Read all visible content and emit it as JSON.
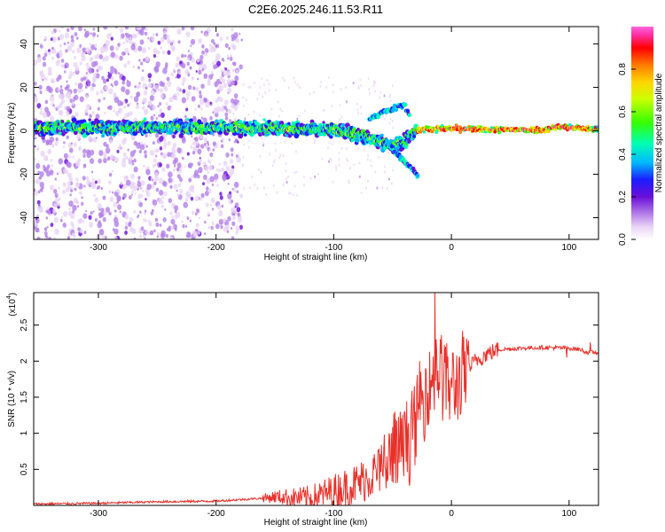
{
  "title": "C2E6.2025.246.11.53.R11",
  "colors": {
    "snr_line": "#e8302a",
    "spectrum_colormap": [
      "#ffffff",
      "#e9d4f5",
      "#b37fe8",
      "#6a0fd8",
      "#1c1cff",
      "#00b7ff",
      "#00ffb4",
      "#35ff00",
      "#ccff00",
      "#ffd400",
      "#ff7a00",
      "#ff0000",
      "#ff2ea0",
      "#ff66dd"
    ]
  },
  "chart_data": [
    {
      "type": "heatmap",
      "title": "C2E6.2025.246.11.53.R11",
      "xlabel": "Height of straight line (km)",
      "ylabel": "Frequency (Hz)",
      "colorbar_label": "Normalized spectral amplitude",
      "xlim": [
        -355,
        125
      ],
      "ylim": [
        -50,
        48
      ],
      "x_ticks": [
        -300,
        -200,
        -100,
        0,
        100
      ],
      "x_tick_labels": [
        "-300",
        "-200",
        "-100",
        "0",
        "100"
      ],
      "y_ticks": [
        -40,
        -20,
        0,
        20,
        40
      ],
      "y_tick_labels": [
        "-40",
        "-20",
        "0",
        "20",
        "40"
      ],
      "colorbar_range": [
        0,
        1
      ],
      "colorbar_ticks": [
        0.0,
        0.2,
        0.4,
        0.6,
        0.8
      ],
      "colorbar_tick_labels": [
        "0.0",
        "0.2",
        "0.4",
        "0.6",
        "0.8"
      ],
      "ridge": {
        "x": [
          -355,
          -300,
          -250,
          -200,
          -150,
          -100,
          -80,
          -60,
          -50,
          -40,
          -30,
          -20,
          0,
          40,
          80,
          90,
          125
        ],
        "frequency_center": [
          1.5,
          1.5,
          1.5,
          1.5,
          1.0,
          0.5,
          -2,
          -5,
          -7,
          -5,
          0,
          1,
          1,
          0.5,
          0.5,
          2,
          0.5
        ]
      },
      "branches": [
        {
          "x": [
            -70,
            -60,
            -50,
            -40,
            -35
          ],
          "frequency": [
            6,
            8,
            10,
            12,
            6
          ]
        },
        {
          "x": [
            -55,
            -48,
            -40,
            -32,
            -28
          ],
          "frequency": [
            -5,
            -10,
            -14,
            -18,
            -22
          ]
        }
      ],
      "note": "scattered low-amplitude purple noise across frequency for heights below -180 km"
    },
    {
      "type": "line",
      "xlabel": "Height of straight line (km)",
      "ylabel": "SNR (10 * v/v)",
      "y_multiplier_label": "(x10",
      "y_multiplier_exp": "4",
      "y_multiplier_close": ")",
      "xlim": [
        -355,
        125
      ],
      "ylim": [
        0,
        2.95
      ],
      "x_ticks": [
        -300,
        -200,
        -100,
        0,
        100
      ],
      "x_tick_labels": [
        "-300",
        "-200",
        "-100",
        "0",
        "100"
      ],
      "y_ticks": [
        0.5,
        1,
        1.5,
        2,
        2.5
      ],
      "y_tick_labels": [
        "0.5",
        "1",
        "1.5",
        "2",
        "2.5"
      ],
      "series": [
        {
          "x": [
            -355,
            -300,
            -250,
            -200,
            -160,
            -150,
            -120,
            -100,
            -80,
            -60,
            -50,
            -40,
            -30,
            -25,
            -20,
            -15,
            -10,
            -5,
            0,
            10,
            20,
            30,
            40,
            60,
            80,
            100,
            110,
            115,
            125
          ],
          "y": [
            0.02,
            0.03,
            0.05,
            0.06,
            0.1,
            0.12,
            0.1,
            0.2,
            0.3,
            0.5,
            0.65,
            0.85,
            1.1,
            1.4,
            1.6,
            1.8,
            1.9,
            1.7,
            1.6,
            1.8,
            2.0,
            2.1,
            2.16,
            2.18,
            2.19,
            2.18,
            2.16,
            2.12,
            2.12
          ]
        }
      ],
      "spikes": [
        {
          "x": -14,
          "y": 2.95
        },
        {
          "x": -13,
          "y": 2.3
        },
        {
          "x": -22,
          "y": 1.9
        },
        {
          "x": -27,
          "y": 2.0
        },
        {
          "x": -48,
          "y": 1.3
        },
        {
          "x": -5,
          "y": 2.2
        },
        {
          "x": 98,
          "y": 2.05
        },
        {
          "x": 118,
          "y": 2.26
        }
      ]
    }
  ]
}
